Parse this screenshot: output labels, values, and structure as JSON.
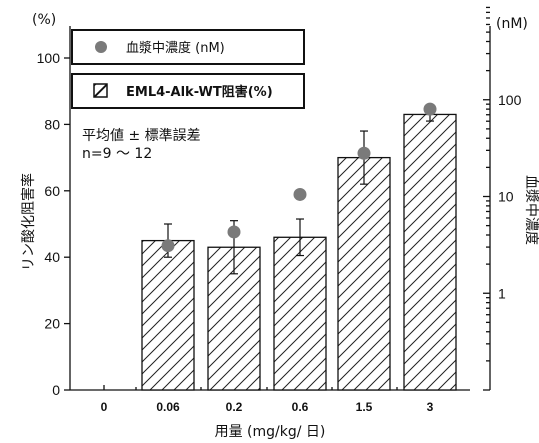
{
  "chart_data": {
    "type": "bar",
    "categories": [
      "0",
      "0.06",
      "0.2",
      "0.6",
      "1.5",
      "3"
    ],
    "series": [
      {
        "name": "EML4-Alk-WT阻害(%)",
        "values": [
          0,
          45,
          43,
          46,
          70,
          83
        ],
        "errors": [
          0,
          5,
          8,
          5.5,
          8,
          2
        ],
        "style": "hatched-bar"
      },
      {
        "name": "血漿中濃度 (nM)",
        "values": [
          null,
          3.1,
          4.3,
          10.5,
          28,
          80
        ],
        "style": "marker",
        "axis": "right"
      }
    ],
    "xlabel": "用量 (mg/kg/ 日)",
    "ylabel": "リン酸化阻害率",
    "ylabel_unit": "(%)",
    "y2label": "血漿中濃度",
    "y2label_unit": "(nM)",
    "ylim": [
      0,
      100
    ],
    "yticks": [
      "0",
      "20",
      "40",
      "60",
      "80",
      "100"
    ],
    "y2lim": [
      0.1,
      1000
    ],
    "y2scale": "log",
    "y2ticks": [
      "1",
      "10",
      "100"
    ],
    "annotation": [
      "平均値 ± 標準誤差",
      "n=9 ～ 12"
    ],
    "legend_placement": "top-left",
    "grid": false,
    "colors": {
      "bar_fill": "#ffffff",
      "hatch": "#222222",
      "marker": "#7a7a7a",
      "axis": "#111111"
    }
  }
}
